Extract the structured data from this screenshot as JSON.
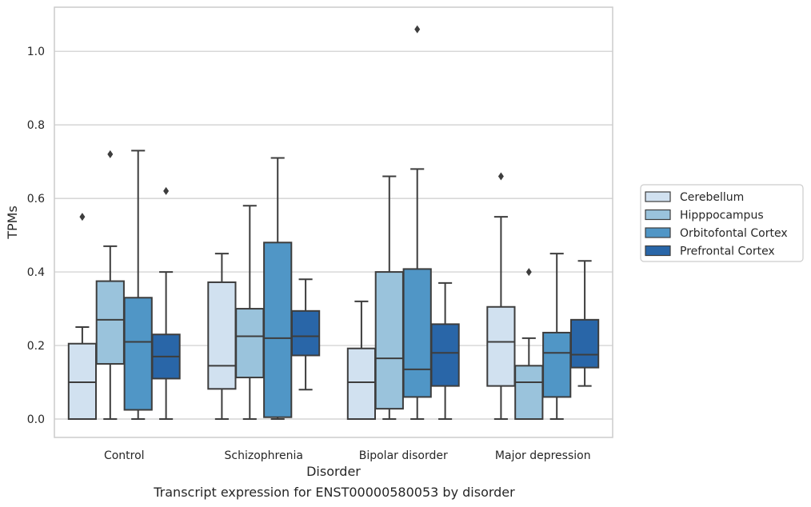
{
  "caption": "Transcript expression for ENST00000580053 by disorder",
  "chart_data": {
    "type": "box",
    "xlabel": "Disorder",
    "ylabel": "TPMs",
    "ylim": [
      -0.05,
      1.12
    ],
    "yticks": [
      "0.0",
      "0.2",
      "0.4",
      "0.6",
      "0.8",
      "1.0"
    ],
    "grid": "horizontal",
    "legend_position": "right",
    "categories": [
      "Control",
      "Schizophrenia",
      "Bipolar disorder",
      "Major depression"
    ],
    "series": [
      {
        "name": "Cerebellum",
        "color": "#d1e1f0",
        "boxes": [
          {
            "whisker_low": 0.0,
            "q1": 0.0,
            "median": 0.1,
            "q3": 0.205,
            "whisker_high": 0.25,
            "outliers": [
              0.55
            ]
          },
          {
            "whisker_low": 0.0,
            "q1": 0.082,
            "median": 0.145,
            "q3": 0.372,
            "whisker_high": 0.45,
            "outliers": []
          },
          {
            "whisker_low": 0.0,
            "q1": 0.0,
            "median": 0.1,
            "q3": 0.192,
            "whisker_high": 0.32,
            "outliers": []
          },
          {
            "whisker_low": 0.0,
            "q1": 0.09,
            "median": 0.21,
            "q3": 0.305,
            "whisker_high": 0.55,
            "outliers": [
              0.66
            ]
          }
        ]
      },
      {
        "name": "Hipppocampus",
        "color": "#9ac3dc",
        "boxes": [
          {
            "whisker_low": 0.0,
            "q1": 0.15,
            "median": 0.27,
            "q3": 0.375,
            "whisker_high": 0.47,
            "outliers": [
              0.72
            ]
          },
          {
            "whisker_low": 0.0,
            "q1": 0.113,
            "median": 0.225,
            "q3": 0.3,
            "whisker_high": 0.58,
            "outliers": []
          },
          {
            "whisker_low": 0.0,
            "q1": 0.028,
            "median": 0.165,
            "q3": 0.4,
            "whisker_high": 0.66,
            "outliers": []
          },
          {
            "whisker_low": 0.0,
            "q1": 0.0,
            "median": 0.1,
            "q3": 0.145,
            "whisker_high": 0.22,
            "outliers": [
              0.4
            ]
          }
        ]
      },
      {
        "name": "Orbitofontal Cortex",
        "color": "#5096c6",
        "boxes": [
          {
            "whisker_low": 0.0,
            "q1": 0.025,
            "median": 0.21,
            "q3": 0.33,
            "whisker_high": 0.73,
            "outliers": []
          },
          {
            "whisker_low": 0.0,
            "q1": 0.005,
            "median": 0.22,
            "q3": 0.48,
            "whisker_high": 0.71,
            "outliers": []
          },
          {
            "whisker_low": 0.0,
            "q1": 0.06,
            "median": 0.135,
            "q3": 0.408,
            "whisker_high": 0.68,
            "outliers": [
              1.06
            ]
          },
          {
            "whisker_low": 0.0,
            "q1": 0.06,
            "median": 0.18,
            "q3": 0.235,
            "whisker_high": 0.45,
            "outliers": []
          }
        ]
      },
      {
        "name": "Prefrontal Cortex",
        "color": "#2966a8",
        "boxes": [
          {
            "whisker_low": 0.0,
            "q1": 0.11,
            "median": 0.17,
            "q3": 0.23,
            "whisker_high": 0.4,
            "outliers": [
              0.62
            ]
          },
          {
            "whisker_low": 0.08,
            "q1": 0.173,
            "median": 0.225,
            "q3": 0.294,
            "whisker_high": 0.38,
            "outliers": []
          },
          {
            "whisker_low": 0.0,
            "q1": 0.09,
            "median": 0.18,
            "q3": 0.258,
            "whisker_high": 0.37,
            "outliers": []
          },
          {
            "whisker_low": 0.09,
            "q1": 0.14,
            "median": 0.175,
            "q3": 0.27,
            "whisker_high": 0.43,
            "outliers": []
          }
        ]
      }
    ]
  }
}
